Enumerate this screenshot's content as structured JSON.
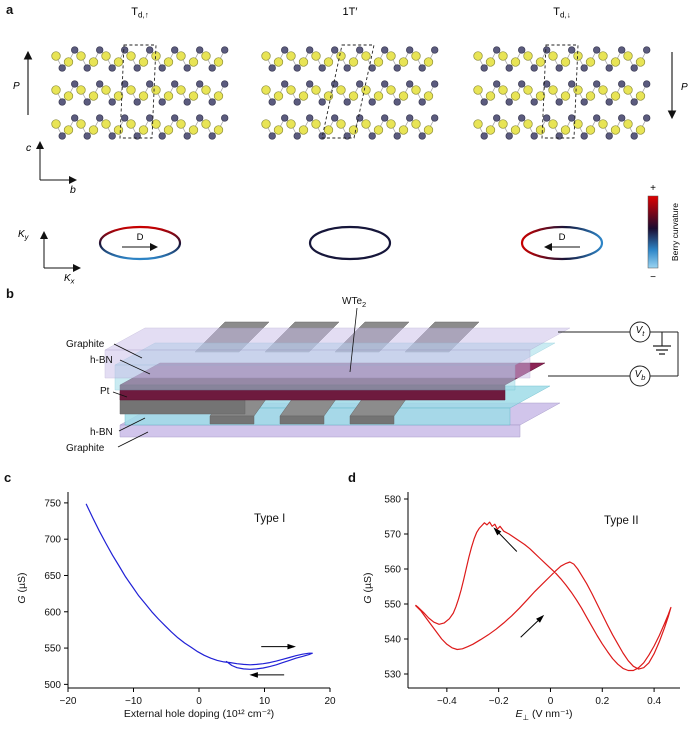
{
  "figure": {
    "panel_a": "a",
    "panel_b": "b",
    "panel_c": "c",
    "panel_d": "d"
  },
  "a": {
    "structures": [
      {
        "base": "T",
        "sub": "d,↑"
      },
      {
        "base": "1T′",
        "sub": ""
      },
      {
        "base": "T",
        "sub": "d,↓"
      }
    ],
    "polarization_up": "P",
    "polarization_down": "P",
    "axis_c": "c",
    "axis_b": "b",
    "ky_base": "K",
    "ky_sub": "y",
    "kx_base": "K",
    "kx_sub": "x",
    "d_label_left": "D",
    "d_label_right": "D",
    "atom_colors": {
      "yellow": "#e8e455",
      "dark": "#5b5b7e",
      "bond": "#9a9a9a",
      "outline_yellow": "#8f8f3a",
      "outline_dark": "#3a3a52"
    },
    "berry": {
      "red": "#c80000",
      "dark": "#16163a",
      "blue": "#2e86c8"
    },
    "colorbar": {
      "plus": "+",
      "minus": "−",
      "label": "Berry curvature",
      "stops": [
        "#e00000",
        "#1a0b30",
        "#2e86c8",
        "#9ad4f2"
      ]
    }
  },
  "b": {
    "graphite_top": "Graphite",
    "hbn_top": "h-BN",
    "pt": "Pt",
    "hbn_bottom": "h-BN",
    "graphite_bottom": "Graphite",
    "wte2_base": "WTe",
    "wte2_sub": "2",
    "vt_base": "V",
    "vt_sub": "t",
    "vb_base": "V",
    "vb_sub": "b",
    "colors": {
      "graphite": "#c9bce8",
      "hbn": "#9fdce8",
      "wte2_front": "#6e1a3e",
      "wte2_top": "#8c2456",
      "metal": "#8c8c8c",
      "metal_dark": "#747474"
    }
  },
  "chart_data": [
    {
      "name": "c",
      "type": "line",
      "annotation": "Type I",
      "xlabel": "External hole doping (10¹² cm⁻²)",
      "ylabel_var": "G",
      "ylabel_rest": " (µS)",
      "xlim": [
        -20,
        20
      ],
      "ylim": [
        495,
        765
      ],
      "xticks": [
        -20,
        -10,
        0,
        10,
        20
      ],
      "yticks": [
        500,
        550,
        600,
        650,
        700,
        750
      ],
      "color": "#2121d6",
      "grid": false,
      "legend": "none",
      "series": [
        {
          "name": "conductance-hysteresis",
          "points": [
            [
              -17.2,
              748
            ],
            [
              -16.2,
              729
            ],
            [
              -15.2,
              711
            ],
            [
              -14.2,
              694
            ],
            [
              -13.2,
              678
            ],
            [
              -12.2,
              663
            ],
            [
              -11.2,
              648
            ],
            [
              -10.2,
              635
            ],
            [
              -9.2,
              622
            ],
            [
              -8.2,
              611
            ],
            [
              -7.2,
              600
            ],
            [
              -6.2,
              590
            ],
            [
              -5.2,
              581
            ],
            [
              -4.2,
              572
            ],
            [
              -3.2,
              564
            ],
            [
              -2.2,
              557
            ],
            [
              -1.2,
              551
            ],
            [
              -0.2,
              545
            ],
            [
              0.8,
              540
            ],
            [
              1.8,
              536
            ],
            [
              2.8,
              533
            ],
            [
              3.8,
              531
            ],
            [
              4.8,
              530
            ],
            [
              5.8,
              528.5
            ],
            [
              6.8,
              527.5
            ],
            [
              7.8,
              527
            ],
            [
              8.8,
              527.5
            ],
            [
              9.8,
              528.5
            ],
            [
              10.8,
              530
            ],
            [
              11.8,
              532
            ],
            [
              12.8,
              534.5
            ],
            [
              13.8,
              537
            ],
            [
              14.8,
              539.5
            ],
            [
              15.8,
              541.5
            ],
            [
              16.8,
              543
            ],
            [
              17.3,
              543
            ],
            [
              16.8,
              541
            ],
            [
              15.8,
              538.5
            ],
            [
              14.8,
              536
            ],
            [
              13.8,
              533
            ],
            [
              12.8,
              530
            ],
            [
              11.8,
              527
            ],
            [
              10.8,
              524.5
            ],
            [
              9.8,
              522.5
            ],
            [
              8.8,
              521.3
            ],
            [
              7.8,
              520.8
            ],
            [
              6.8,
              521.3
            ],
            [
              5.8,
              523
            ],
            [
              5.0,
              526
            ],
            [
              4.5,
              529.5
            ],
            [
              4.2,
              531.5
            ]
          ]
        }
      ],
      "arrows": [
        {
          "x1": 9.5,
          "y1": 552,
          "x2": 14.5,
          "y2": 552
        },
        {
          "x1": 13.0,
          "y1": 513,
          "x2": 8.0,
          "y2": 513
        }
      ]
    },
    {
      "name": "d",
      "type": "line",
      "annotation": "Type II",
      "xlabel_var": "E",
      "xlabel_sub": "⊥",
      "xlabel_rest": " (V nm⁻¹)",
      "ylabel_var": "G",
      "ylabel_rest": " (µS)",
      "xlim": [
        -0.55,
        0.5
      ],
      "ylim": [
        526,
        582
      ],
      "xticks": [
        -0.4,
        -0.2,
        0,
        0.2,
        0.4
      ],
      "yticks": [
        530,
        540,
        550,
        560,
        570,
        580
      ],
      "color": "#dd1a1a",
      "grid": false,
      "legend": "none",
      "series": [
        {
          "name": "conductance-hysteresis",
          "points": [
            [
              -0.52,
              549.5
            ],
            [
              -0.5,
              548
            ],
            [
              -0.48,
              546
            ],
            [
              -0.46,
              544
            ],
            [
              -0.44,
              542
            ],
            [
              -0.42,
              540
            ],
            [
              -0.4,
              538.5
            ],
            [
              -0.38,
              537.5
            ],
            [
              -0.36,
              537
            ],
            [
              -0.34,
              537.2
            ],
            [
              -0.32,
              537.8
            ],
            [
              -0.3,
              538.5
            ],
            [
              -0.27,
              539.8
            ],
            [
              -0.24,
              541.2
            ],
            [
              -0.21,
              542.8
            ],
            [
              -0.18,
              544.6
            ],
            [
              -0.15,
              546.6
            ],
            [
              -0.12,
              548.8
            ],
            [
              -0.09,
              551.2
            ],
            [
              -0.06,
              553.6
            ],
            [
              -0.03,
              555.8
            ],
            [
              0.0,
              558
            ],
            [
              0.02,
              559.5
            ],
            [
              0.04,
              560.8
            ],
            [
              0.06,
              561.6
            ],
            [
              0.075,
              562
            ],
            [
              0.09,
              561.4
            ],
            [
              0.105,
              560
            ],
            [
              0.12,
              558.2
            ],
            [
              0.14,
              555.8
            ],
            [
              0.16,
              553
            ],
            [
              0.18,
              550
            ],
            [
              0.2,
              547
            ],
            [
              0.22,
              544
            ],
            [
              0.24,
              541.2
            ],
            [
              0.26,
              538.6
            ],
            [
              0.28,
              536
            ],
            [
              0.3,
              533.8
            ],
            [
              0.32,
              532.2
            ],
            [
              0.34,
              531.4
            ],
            [
              0.36,
              531.8
            ],
            [
              0.38,
              533.2
            ],
            [
              0.4,
              535.8
            ],
            [
              0.42,
              539.2
            ],
            [
              0.44,
              543.2
            ],
            [
              0.455,
              546.4
            ],
            [
              0.465,
              549
            ],
            [
              0.455,
              547
            ],
            [
              0.44,
              544.4
            ],
            [
              0.42,
              541
            ],
            [
              0.4,
              538
            ],
            [
              0.38,
              535.4
            ],
            [
              0.36,
              533.2
            ],
            [
              0.34,
              531.8
            ],
            [
              0.32,
              531
            ],
            [
              0.3,
              531
            ],
            [
              0.28,
              531.6
            ],
            [
              0.26,
              532.8
            ],
            [
              0.24,
              534.4
            ],
            [
              0.22,
              536.4
            ],
            [
              0.2,
              538.6
            ],
            [
              0.18,
              541
            ],
            [
              0.16,
              543.6
            ],
            [
              0.14,
              546.2
            ],
            [
              0.12,
              548.8
            ],
            [
              0.1,
              551.2
            ],
            [
              0.08,
              553.4
            ],
            [
              0.06,
              555.4
            ],
            [
              0.04,
              557.2
            ],
            [
              0.02,
              558.8
            ],
            [
              0.0,
              560.2
            ],
            [
              -0.02,
              561.6
            ],
            [
              -0.04,
              563
            ],
            [
              -0.06,
              564.4
            ],
            [
              -0.08,
              565.8
            ],
            [
              -0.1,
              567
            ],
            [
              -0.12,
              568
            ],
            [
              -0.14,
              569
            ],
            [
              -0.16,
              570
            ],
            [
              -0.18,
              570.8
            ],
            [
              -0.195,
              572.2
            ],
            [
              -0.205,
              571.4
            ],
            [
              -0.215,
              572.8
            ],
            [
              -0.225,
              572.2
            ],
            [
              -0.235,
              573.4
            ],
            [
              -0.245,
              572.6
            ],
            [
              -0.255,
              573.2
            ],
            [
              -0.265,
              572.4
            ],
            [
              -0.275,
              571.6
            ],
            [
              -0.285,
              570.4
            ],
            [
              -0.295,
              568.6
            ],
            [
              -0.305,
              566.2
            ],
            [
              -0.315,
              563.4
            ],
            [
              -0.325,
              560.2
            ],
            [
              -0.335,
              557
            ],
            [
              -0.345,
              554
            ],
            [
              -0.355,
              551.4
            ],
            [
              -0.365,
              549.2
            ],
            [
              -0.375,
              547.4
            ],
            [
              -0.39,
              545.8
            ],
            [
              -0.41,
              544.6
            ],
            [
              -0.43,
              544.2
            ],
            [
              -0.45,
              544.8
            ],
            [
              -0.47,
              546
            ],
            [
              -0.49,
              547.6
            ],
            [
              -0.51,
              549
            ],
            [
              -0.52,
              549.6
            ]
          ]
        }
      ],
      "arrows": [
        {
          "x1": -0.13,
          "y1": 565,
          "x2": -0.215,
          "y2": 571.5
        },
        {
          "x1": -0.115,
          "y1": 540.5,
          "x2": -0.03,
          "y2": 546.5
        }
      ]
    }
  ]
}
